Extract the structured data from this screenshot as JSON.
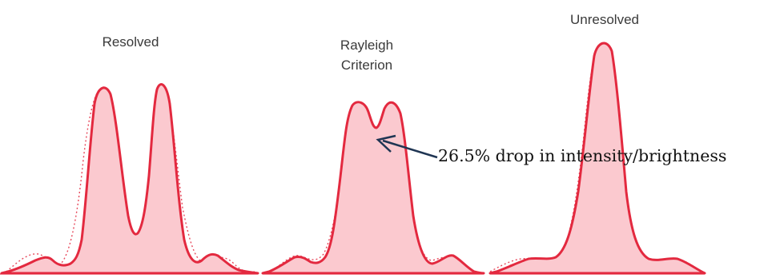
{
  "panels": [
    {
      "title_lines": [
        "Resolved"
      ]
    },
    {
      "title_lines": [
        "Rayleigh",
        "Criterion"
      ]
    },
    {
      "title_lines": [
        "Unresolved"
      ]
    }
  ],
  "annotation": {
    "text": "26.5% drop in intensity/brightness"
  },
  "colors": {
    "curve_stroke": "#e3293f",
    "curve_fill": "#fbc9cf",
    "arrow": "#1f3553"
  }
}
